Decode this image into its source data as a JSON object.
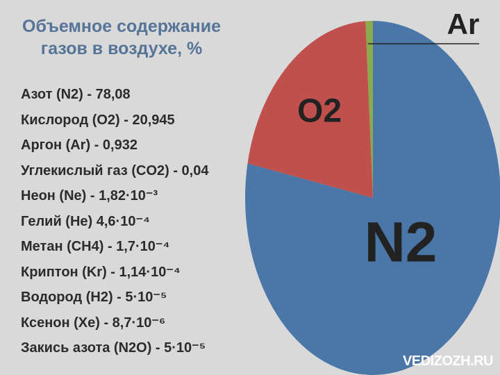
{
  "chart_data": {
    "type": "pie",
    "title": "Объемное содержание газов в воздухе, %",
    "categories": [
      "N2",
      "O2",
      "Ar"
    ],
    "values": [
      78.08,
      20.945,
      0.932
    ],
    "colors": [
      "#4a77a8",
      "#c0504d",
      "#8aab4c"
    ],
    "annotations": [
      "Азот (N2) - 78,08",
      "Кислород (O2) - 20,945",
      "Аргон (Ar) - 0,932",
      "Углекислый газ (CO2) - 0,04",
      "Неон (Ne) - 1,82·10⁻³",
      "Гелий (He) 4,6·10⁻⁴",
      "Метан (CH4) - 1,7·10⁻⁴",
      "Криптон (Kr) - 1,14·10⁻⁴",
      "Водород (H2) - 5·10⁻⁵",
      "Ксенон (Xe) - 8,7·10⁻⁶",
      "Закись азота (N2O) - 5·10⁻⁵"
    ],
    "watermark": "VEDIZOZH.RU"
  }
}
